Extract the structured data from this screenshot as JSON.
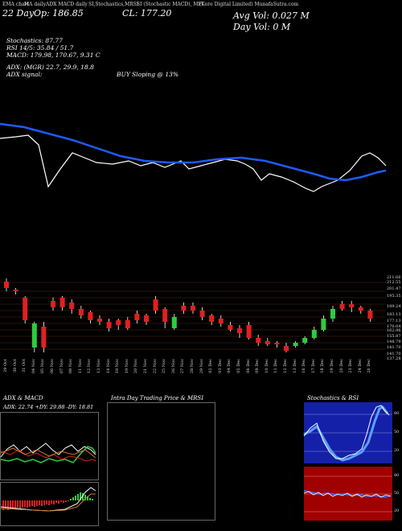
{
  "header": {
    "texts": [
      "EMA chart",
      "MA daily",
      "ADX MACD daily",
      "SI,Stochastics,MRSI",
      "SI (Stochastic MACD), MFI",
      "(Kore Digital Limited) MunafaSutra.com"
    ],
    "date_label": "22 Day",
    "open_label": "Op: 186.85",
    "close_label": "CL: 177.20",
    "avg_vol": "Avg Vol: 0.027 M",
    "day_vol": "Day Vol: 0   M"
  },
  "indicators": {
    "stochastics": "Stochastics: 87.77",
    "rsi": "RSI 14/5: 35.84 / 51.7",
    "macd": "MACD: 179.98, 170.67, 9.31 C",
    "adx": "ADX: (MGR) 22.7, 29.9, 18.8",
    "adx_signal": "ADX signal:",
    "signal": "BUY Sloping @ 13%"
  },
  "candles": {
    "price_labels": [
      "211.66",
      "212.55",
      "201.47",
      "195.35",
      "189.24",
      "183.13",
      "177.13",
      "170.04",
      "162.96",
      "155.87",
      "148.79",
      "141.70",
      "141.70",
      "137.28"
    ],
    "dates": [
      "29 Oct",
      "30 Oct",
      "31 Oct",
      "04 Nov",
      "05 Nov",
      "06 Nov",
      "07 Nov",
      "08 Nov",
      "11 Nov",
      "12 Nov",
      "13 Nov",
      "14 Nov",
      "18 Nov",
      "19 Nov",
      "20 Nov",
      "21 Nov",
      "22 Nov",
      "25 Nov",
      "26 Nov",
      "27 Nov",
      "28 Nov",
      "29 Nov",
      "02 Dec",
      "03 Dec",
      "04 Dec",
      "05 Dec",
      "06 Dec",
      "09 Dec",
      "10 Dec",
      "11 Dec",
      "12 Dec",
      "13 Dec",
      "16 Dec",
      "17 Dec",
      "18 Dec",
      "19 Dec",
      "20 Dec",
      "23 Dec",
      "24 Dec",
      "26 Dec"
    ]
  },
  "panels": {
    "adx_title": "ADX  & MACD",
    "adx_values": "ADX: 22.74  +DY: 29.88  -DY: 18.81",
    "intraday_title": "Intra Day Trading Price  & MRSI",
    "stoch_title": "Stochastics & RSI",
    "stoch_levels": [
      "80",
      "50",
      "20"
    ],
    "rsi_levels": [
      "80",
      "50",
      "20"
    ]
  },
  "colors": {
    "ema_blue": "#1e5bff",
    "price_white": "#ffffff",
    "bull": "#2ecc40",
    "bear": "#e02020",
    "stoch_bg": "#1420a8",
    "rsi_bg": "#a00000"
  }
}
